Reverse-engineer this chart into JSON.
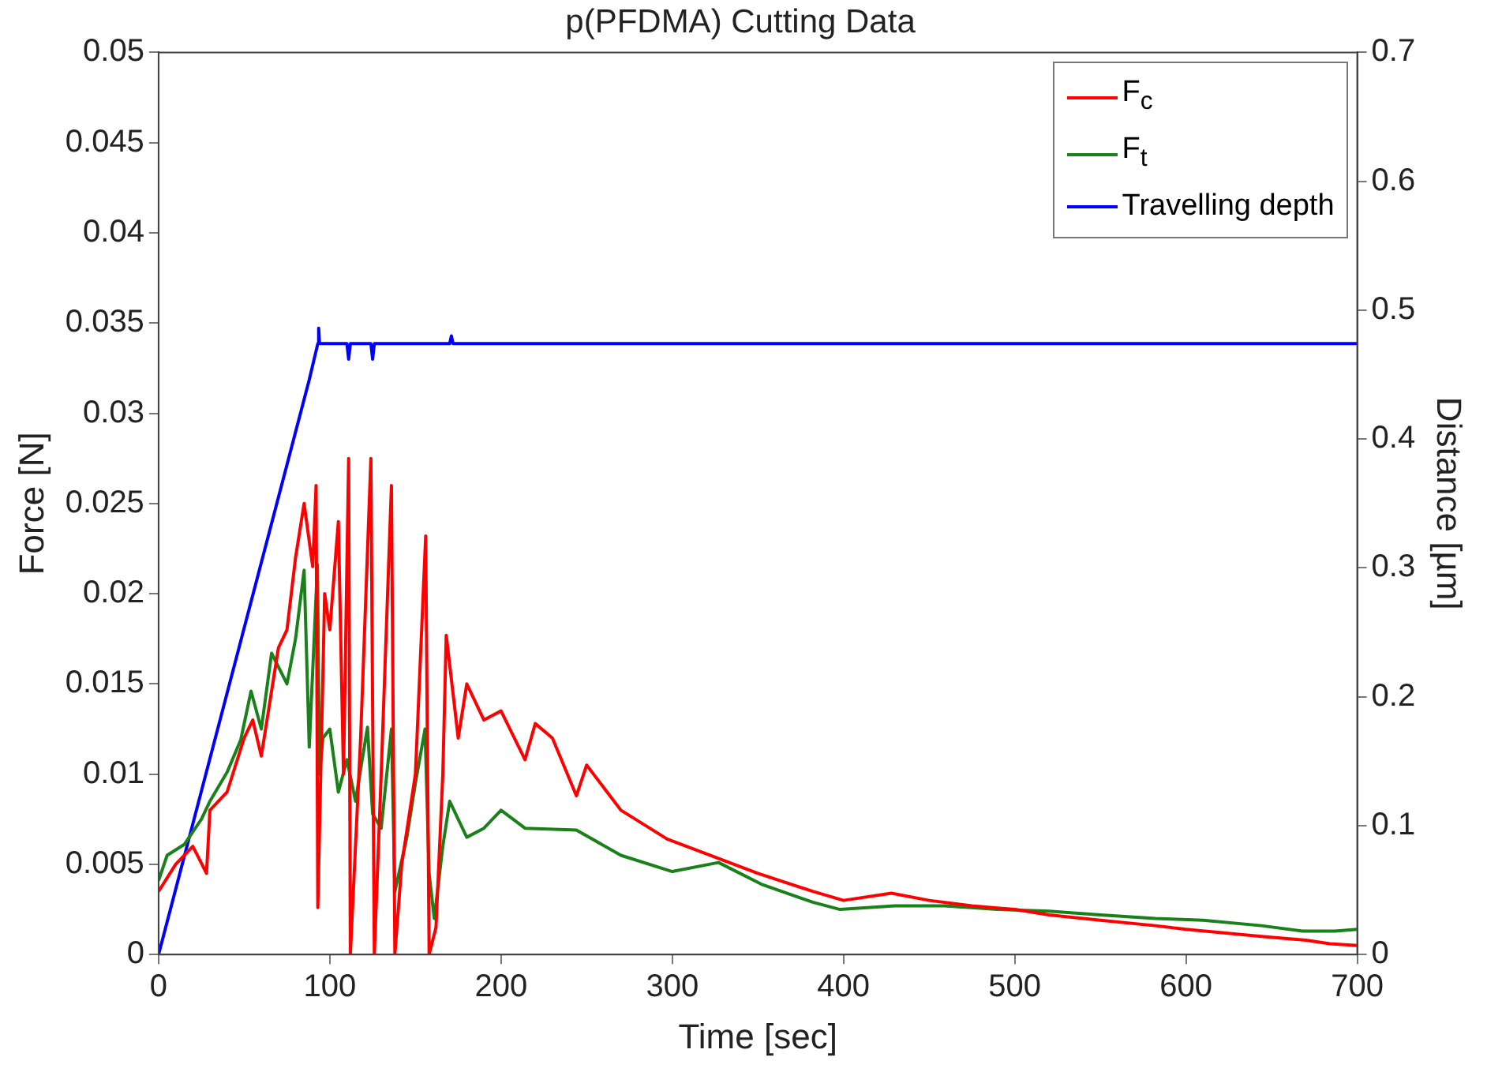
{
  "chart_data": {
    "type": "line",
    "title": "p(PFDMA) Cutting Data",
    "xlabel": "Time [sec]",
    "ylabel": "Force [N]",
    "y2label": "Distance [µm]",
    "xlim": [
      0,
      700
    ],
    "xticks": [
      0,
      100,
      200,
      300,
      400,
      500,
      600,
      700
    ],
    "ylim": [
      0,
      0.05
    ],
    "yticks": [
      0,
      0.005,
      0.01,
      0.015,
      0.02,
      0.025,
      0.03,
      0.035,
      0.04,
      0.045,
      0.05
    ],
    "y2lim": [
      0,
      0.7
    ],
    "y2ticks": [
      0,
      0.1,
      0.2,
      0.3,
      0.4,
      0.5,
      0.6,
      0.7
    ],
    "grid": false,
    "legend": "top right",
    "marker": "none",
    "line_style": "solid",
    "series": [
      {
        "name": "F$_{c}$",
        "color": "#ff0000",
        "x": [
          0,
          10,
          20,
          28,
          30,
          40,
          50,
          55,
          60,
          65,
          70,
          75,
          80,
          85,
          90,
          92,
          93,
          97,
          100,
          105,
          108,
          111,
          112,
          118,
          124,
          126,
          130,
          136,
          138,
          142,
          150,
          156,
          158,
          162,
          166,
          168,
          175,
          180,
          190,
          200,
          214,
          220,
          230,
          244,
          250,
          270,
          297,
          322,
          350,
          382,
          400,
          428,
          450,
          475,
          500,
          520,
          550,
          582,
          600,
          644,
          670,
          684,
          700
        ],
        "values": [
          0.0035,
          0.005,
          0.006,
          0.0045,
          0.008,
          0.009,
          0.012,
          0.013,
          0.011,
          0.014,
          0.017,
          0.018,
          0.022,
          0.025,
          0.0215,
          0.026,
          0.0026,
          0.02,
          0.018,
          0.024,
          0.01,
          0.0275,
          0,
          0.012,
          0.0275,
          0,
          0.01,
          0.026,
          0,
          0.005,
          0.01,
          0.0232,
          0,
          0.0015,
          0.01,
          0.0177,
          0.012,
          0.015,
          0.013,
          0.0135,
          0.0108,
          0.0128,
          0.012,
          0.0088,
          0.0105,
          0.008,
          0.0064,
          0.0055,
          0.0045,
          0.0035,
          0.003,
          0.0034,
          0.003,
          0.0027,
          0.0025,
          0.0022,
          0.0019,
          0.0016,
          0.0014,
          0.001,
          0.0008,
          0.0006,
          0.0005
        ]
      },
      {
        "name": "F$_{t}$",
        "color": "#1a801a",
        "x": [
          0,
          5,
          15,
          25,
          30,
          40,
          48,
          54,
          60,
          66,
          75,
          80,
          85,
          88,
          92.8,
          94,
          96,
          100,
          105,
          110,
          115,
          122,
          125,
          130,
          136,
          138,
          145,
          150,
          155.6,
          158,
          161,
          166,
          170,
          175,
          180,
          190,
          200,
          214,
          244,
          270,
          300,
          327,
          352,
          382,
          398,
          430,
          459,
          490,
          520,
          550,
          582,
          610,
          644,
          668,
          687,
          700
        ],
        "values": [
          0.0041,
          0.0055,
          0.0061,
          0.0075,
          0.0085,
          0.0101,
          0.0119,
          0.0146,
          0.0125,
          0.0167,
          0.015,
          0.0175,
          0.0213,
          0.0115,
          0.0216,
          0.01,
          0.012,
          0.0125,
          0.009,
          0.0108,
          0.0085,
          0.0126,
          0.0078,
          0.007,
          0.0125,
          0.0035,
          0.0065,
          0.0095,
          0.0125,
          0.0045,
          0.002,
          0.006,
          0.0085,
          0.0075,
          0.0065,
          0.007,
          0.008,
          0.007,
          0.0069,
          0.0055,
          0.0046,
          0.0051,
          0.0039,
          0.0029,
          0.0025,
          0.0027,
          0.0027,
          0.0025,
          0.0024,
          0.0022,
          0.002,
          0.0019,
          0.0016,
          0.0013,
          0.0013,
          0.0014
        ]
      },
      {
        "name": "Travelling depth",
        "color": "#0000ff",
        "axis": "y2",
        "x": [
          0,
          88,
          93,
          93.5,
          94,
          110,
          111,
          112,
          124,
          125,
          126,
          170,
          171,
          172,
          700
        ],
        "values": [
          0,
          0.446,
          0.474,
          0.486,
          0.474,
          0.474,
          0.462,
          0.474,
          0.474,
          0.462,
          0.474,
          0.474,
          0.48,
          0.474,
          0.474
        ]
      }
    ]
  }
}
